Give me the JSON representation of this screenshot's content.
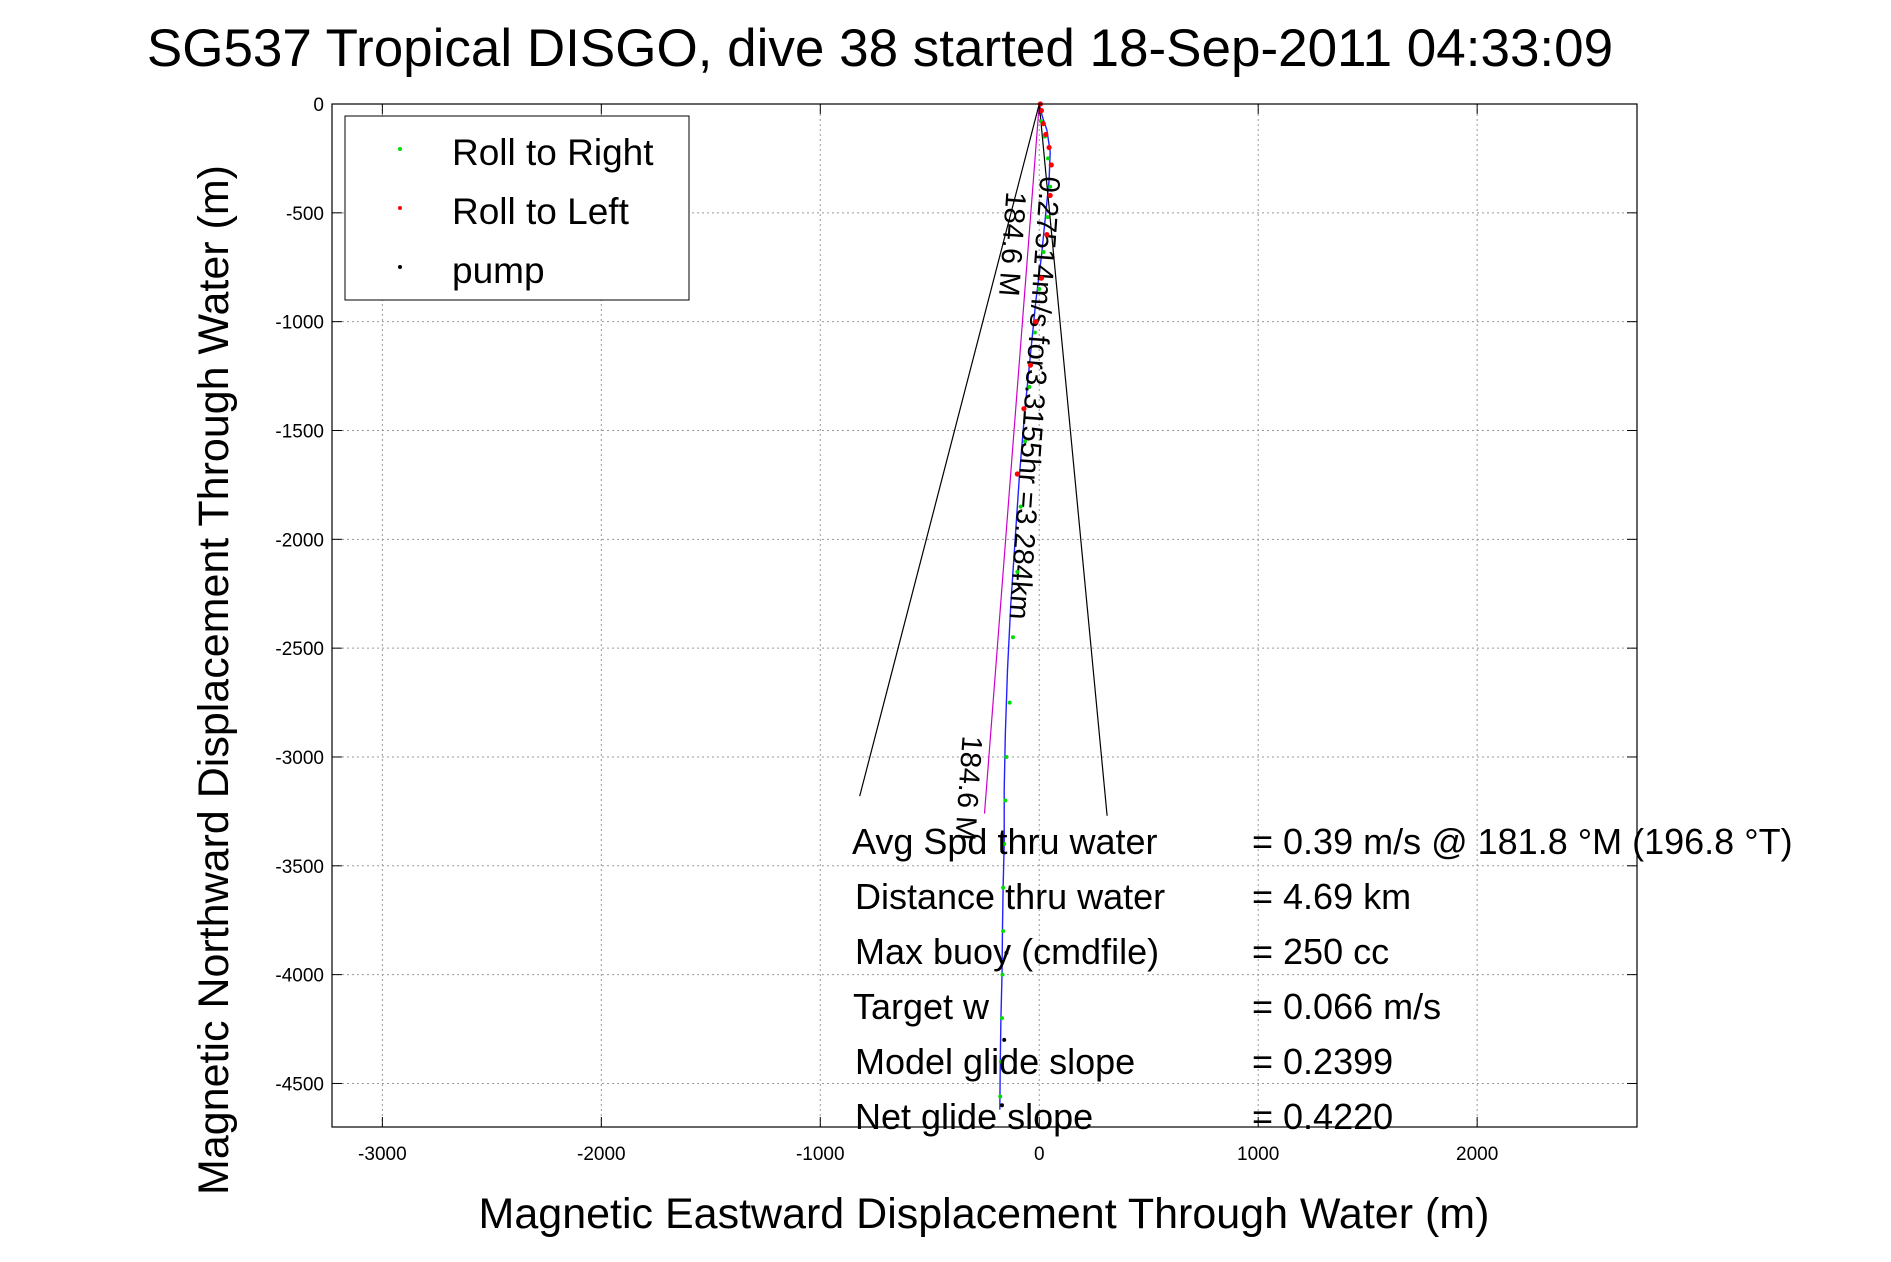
{
  "chart_data": {
    "type": "line",
    "title": "SG537 Tropical DISGO, dive 38 started 18-Sep-2011 04:33:09",
    "xlabel": "Magnetic Eastward Displacement Through Water (m)",
    "ylabel": "Magnetic Northward Displacement Through Water (m)",
    "xlim": [
      -3230,
      2730
    ],
    "ylim": [
      -4700,
      0
    ],
    "xticks": [
      -3000,
      -2000,
      -1000,
      0,
      1000,
      2000
    ],
    "xtick_labels": [
      "-3000",
      "-2000",
      "-1000",
      "0",
      "1000",
      "2000"
    ],
    "yticks": [
      0,
      -500,
      -1000,
      -1500,
      -2000,
      -2500,
      -3000,
      -3500,
      -4000,
      -4500
    ],
    "ytick_labels": [
      "0",
      "-500",
      "-1000",
      "-1500",
      "-2000",
      "-2500",
      "-3000",
      "-3500",
      "-4000",
      "-4500"
    ],
    "grid": true,
    "legend_position": "top-left",
    "legend": [
      {
        "label": "Roll to Right",
        "color": "#00dd00"
      },
      {
        "label": "Roll to Left",
        "color": "#ff0000"
      },
      {
        "label": "pump",
        "color": "#000000"
      }
    ],
    "series": [
      {
        "name": "Roll to Right",
        "color": "#00dd00",
        "x": [
          8,
          25,
          40,
          50,
          38,
          20,
          0,
          -20,
          -45,
          -65,
          -85,
          -100,
          -120,
          -135,
          -150,
          -155,
          -160,
          -165,
          -165,
          -168,
          -170,
          -175,
          -178
        ],
        "y": [
          -80,
          -150,
          -250,
          -380,
          -520,
          -680,
          -850,
          -1050,
          -1300,
          -1550,
          -1850,
          -2150,
          -2450,
          -2750,
          -3000,
          -3200,
          -3400,
          -3600,
          -3800,
          -4000,
          -4200,
          -4400,
          -4560
        ]
      },
      {
        "name": "Roll to Left",
        "color": "#ff0000",
        "x": [
          5,
          10,
          18,
          30,
          45,
          55,
          50,
          35,
          10,
          -15,
          -40,
          -70,
          -100
        ],
        "y": [
          0,
          -30,
          -90,
          -140,
          -200,
          -280,
          -420,
          -600,
          -800,
          -1000,
          -1200,
          -1400,
          -1700
        ]
      },
      {
        "name": "pump",
        "color": "#000000",
        "x": [
          -150,
          -160,
          -170
        ],
        "y": [
          -3900,
          -4300,
          -4600
        ]
      }
    ],
    "track": {
      "color": "#2222ff",
      "x": [
        0,
        15,
        35,
        50,
        45,
        30,
        10,
        -15,
        -40,
        -65,
        -90,
        -110,
        -130,
        -145,
        -155,
        -160,
        -160,
        -165,
        -168,
        -170,
        -175,
        -178,
        -180
      ],
      "y": [
        0,
        -60,
        -120,
        -220,
        -350,
        -500,
        -700,
        -900,
        -1150,
        -1400,
        -1700,
        -2000,
        -2300,
        -2600,
        -2900,
        -3150,
        -3400,
        -3600,
        -3800,
        -4000,
        -4200,
        -4400,
        -4620
      ]
    },
    "heading_line": {
      "color": "#cc00cc",
      "x": [
        0,
        -250
      ],
      "y": [
        0,
        -3260
      ]
    },
    "wedge_lines": {
      "color": "#000000",
      "apex": [
        0,
        0
      ],
      "ends": [
        [
          -820,
          -3180
        ],
        [
          310,
          -3270
        ]
      ]
    },
    "rotated_labels": [
      {
        "text": "0.27514m/s for3.3155hr =3.284km",
        "x": 5,
        "y": -330,
        "angle": 94
      },
      {
        "text": "184.6 M",
        "x": -150,
        "y": -400,
        "angle": 94
      },
      {
        "text": "184.6 M",
        "x": -350,
        "y": -2900,
        "angle": 94
      }
    ],
    "annotations": [
      {
        "label": "Avg Spd thru water",
        "value": "=  0.39 m/s @ 181.8 °M (196.8 °T)"
      },
      {
        "label": "Distance thru water",
        "value": "=  4.69 km"
      },
      {
        "label": "Max buoy (cmdfile)",
        "value": "= 250 cc"
      },
      {
        "label": "Target w",
        "value": "= 0.066 m/s"
      },
      {
        "label": "Model glide slope",
        "value": "= 0.2399"
      },
      {
        "label": "Net glide slope",
        "value": "= 0.4220"
      }
    ]
  }
}
